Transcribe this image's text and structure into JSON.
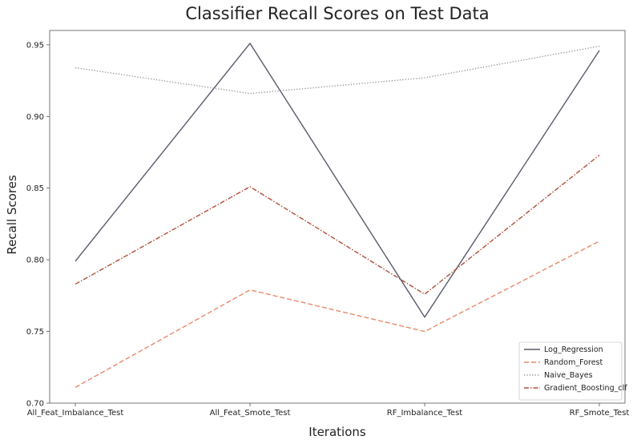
{
  "chart_data": {
    "type": "line",
    "title": "Classifier Recall Scores on Test Data",
    "xlabel": "Iterations",
    "ylabel": "Recall Scores",
    "categories": [
      "All_Feat_Imbalance_Test",
      "All_Feat_Smote_Test",
      "RF_Imbalance_Test",
      "RF_Smote_Test"
    ],
    "ylim": [
      0.7,
      0.96
    ],
    "yticks": [
      "0.70",
      "0.75",
      "0.80",
      "0.85",
      "0.90",
      "0.95"
    ],
    "grid": false,
    "legend_position": "bottom-right",
    "series": [
      {
        "name": "Log_Regression",
        "values": [
          0.799,
          0.951,
          0.76,
          0.946
        ],
        "color": "#5a5a6e",
        "dash": "solid"
      },
      {
        "name": "Random_Forest",
        "values": [
          0.711,
          0.779,
          0.75,
          0.813
        ],
        "color": "#e8896a",
        "dash": "dashed"
      },
      {
        "name": "Naive_Bayes",
        "values": [
          0.934,
          0.916,
          0.927,
          0.949
        ],
        "color": "#8f8f95",
        "dash": "dotted"
      },
      {
        "name": "Gradient_Boosting_clf",
        "values": [
          0.783,
          0.851,
          0.776,
          0.873
        ],
        "color": "#b0503a",
        "dash": "dashdot"
      }
    ]
  }
}
